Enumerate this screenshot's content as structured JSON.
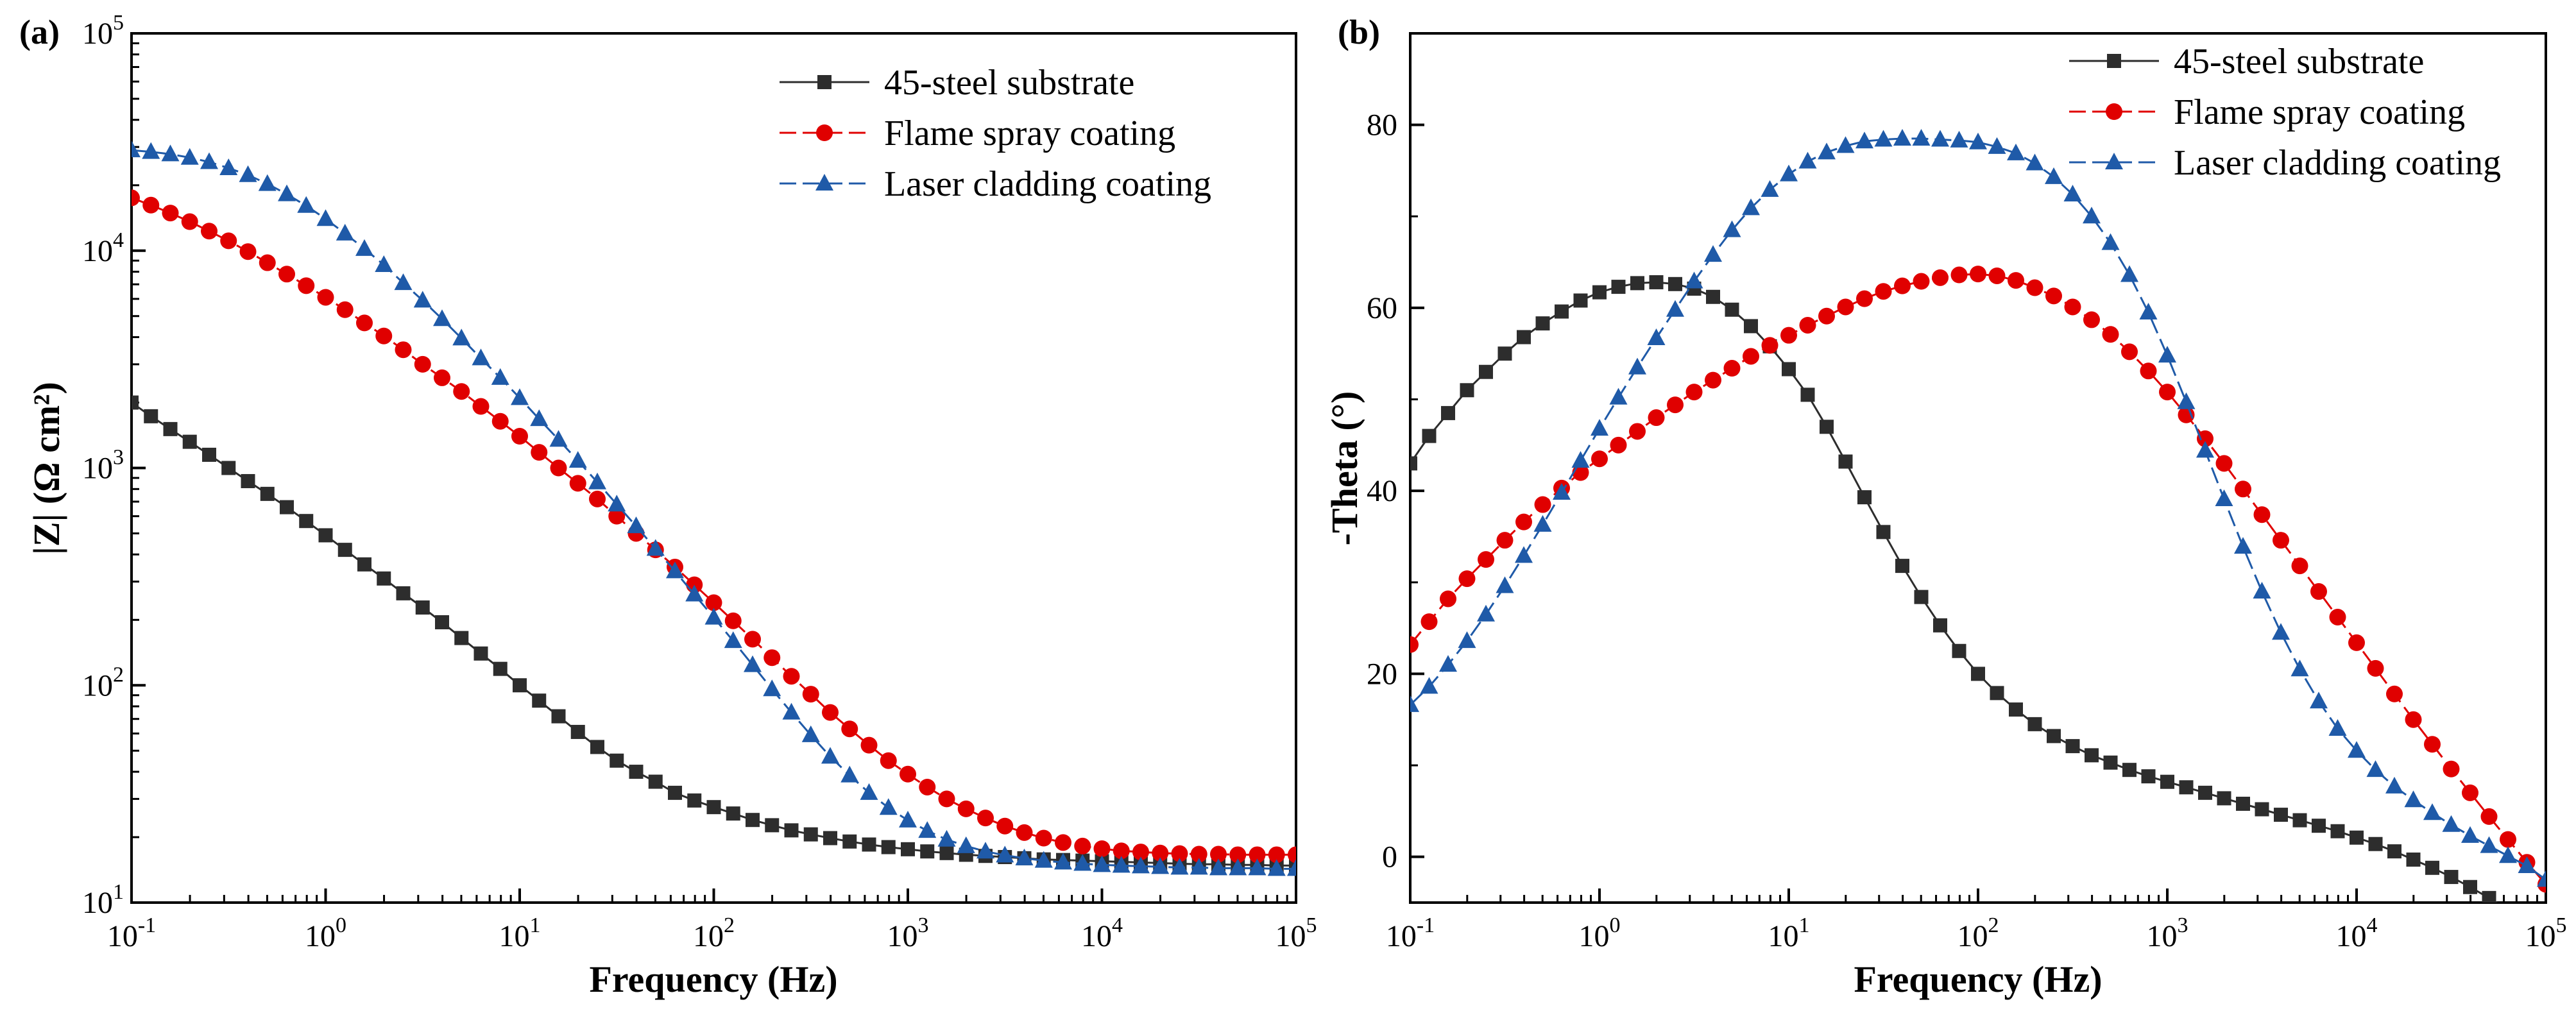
{
  "chart_data": [
    {
      "panel": "(a)",
      "type": "line",
      "x_scale": "log",
      "y_scale": "log",
      "xlabel": "Frequency (Hz)",
      "ylabel": "|Z| (Ω cm²)",
      "xlim": [
        0.1,
        100000
      ],
      "ylim": [
        10,
        100000
      ],
      "x_ticks": [
        {
          "base": "10",
          "exp": "-1"
        },
        {
          "base": "10",
          "exp": "0"
        },
        {
          "base": "10",
          "exp": "1"
        },
        {
          "base": "10",
          "exp": "2"
        },
        {
          "base": "10",
          "exp": "3"
        },
        {
          "base": "10",
          "exp": "4"
        },
        {
          "base": "10",
          "exp": "5"
        }
      ],
      "y_ticks": [
        {
          "base": "10",
          "exp": "1"
        },
        {
          "base": "10",
          "exp": "2"
        },
        {
          "base": "10",
          "exp": "3"
        },
        {
          "base": "10",
          "exp": "4"
        },
        {
          "base": "10",
          "exp": "5"
        }
      ],
      "legend_position": "top-right",
      "x": [
        0.1,
        0.1259,
        0.1585,
        0.1995,
        0.2512,
        0.3162,
        0.3981,
        0.5012,
        0.631,
        0.7943,
        1.0,
        1.2589,
        1.5849,
        1.9953,
        2.5119,
        3.1623,
        3.9811,
        5.0119,
        6.3096,
        7.9433,
        10.0,
        12.5893,
        15.8489,
        19.9526,
        25.1189,
        31.6228,
        39.8107,
        50.1187,
        63.0957,
        79.4328,
        100.0,
        125.89,
        158.49,
        199.53,
        251.19,
        316.23,
        398.11,
        501.19,
        630.96,
        794.33,
        1000.0,
        1258.93,
        1584.89,
        1995.26,
        2511.89,
        3162.28,
        3981.07,
        5011.87,
        6309.57,
        7943.28,
        10000.0,
        12589.3,
        15848.9,
        19952.6,
        25118.9,
        31622.8,
        39810.7,
        50118.7,
        63095.7,
        79432.8,
        100000.0
      ],
      "series": [
        {
          "name": "45-steel substrate",
          "color": "#2d2d2d",
          "marker": "square",
          "linestyle": "solid",
          "values": [
            2000,
            1730,
            1510,
            1320,
            1150,
            1000,
            870,
            760,
            660,
            570,
            490,
            420,
            360,
            310,
            265,
            228,
            195,
            165,
            140,
            119,
            100,
            85,
            72,
            61,
            52,
            45,
            40,
            36,
            32,
            29.5,
            27.5,
            25.7,
            24,
            22.7,
            21.5,
            20.6,
            19.8,
            19.1,
            18.5,
            18,
            17.6,
            17.2,
            16.9,
            16.6,
            16.4,
            16.2,
            16,
            15.8,
            15.7,
            15.6,
            15.5,
            15.4,
            15.3,
            15.2,
            15.1,
            15,
            15,
            14.9,
            14.9,
            14.8,
            14.8
          ]
        },
        {
          "name": "Flame spray coating",
          "color": "#e00000",
          "marker": "circle",
          "linestyle": "dashed",
          "values": [
            17500,
            16200,
            14900,
            13600,
            12300,
            11100,
            9900,
            8800,
            7800,
            6900,
            6100,
            5350,
            4650,
            4050,
            3500,
            3000,
            2600,
            2250,
            1920,
            1640,
            1400,
            1180,
            1000,
            850,
            720,
            600,
            500,
            420,
            350,
            290,
            240,
            198,
            163,
            134,
            110,
            91,
            75,
            63,
            53,
            45,
            39,
            34,
            30,
            27,
            24.5,
            22.5,
            21,
            19.8,
            18.9,
            18.2,
            17.7,
            17.3,
            17.1,
            16.9,
            16.8,
            16.7,
            16.7,
            16.6,
            16.6,
            16.6,
            16.6
          ]
        },
        {
          "name": "Laser cladding coating",
          "color": "#1f5aa8",
          "marker": "triangle",
          "linestyle": "dashed",
          "values": [
            29000,
            28500,
            27800,
            26800,
            25600,
            24000,
            22300,
            20300,
            18200,
            16100,
            14000,
            12000,
            10200,
            8600,
            7100,
            5900,
            4850,
            3950,
            3200,
            2600,
            2100,
            1680,
            1350,
            1080,
            860,
            680,
            540,
            425,
            335,
            262,
            205,
            160,
            124,
            96,
            75,
            59,
            47,
            38.5,
            32,
            27.3,
            23.9,
            21.4,
            19.5,
            18.2,
            17.2,
            16.5,
            16,
            15.6,
            15.3,
            15.1,
            14.9,
            14.8,
            14.7,
            14.6,
            14.5,
            14.5,
            14.4,
            14.4,
            14.4,
            14.3,
            14.3
          ]
        }
      ]
    },
    {
      "panel": "(b)",
      "type": "line",
      "x_scale": "log",
      "y_scale": "linear",
      "xlabel": "Frequency (Hz)",
      "ylabel": "-Theta (°)",
      "xlim": [
        0.1,
        100000
      ],
      "ylim": [
        -5,
        90
      ],
      "x_ticks": [
        {
          "base": "10",
          "exp": "-1"
        },
        {
          "base": "10",
          "exp": "0"
        },
        {
          "base": "10",
          "exp": "1"
        },
        {
          "base": "10",
          "exp": "2"
        },
        {
          "base": "10",
          "exp": "3"
        },
        {
          "base": "10",
          "exp": "4"
        },
        {
          "base": "10",
          "exp": "5"
        }
      ],
      "y_ticks": [
        0,
        20,
        40,
        60,
        80
      ],
      "legend_position": "top-right",
      "x": [
        0.1,
        0.1259,
        0.1585,
        0.1995,
        0.2512,
        0.3162,
        0.3981,
        0.5012,
        0.631,
        0.7943,
        1.0,
        1.2589,
        1.5849,
        1.9953,
        2.5119,
        3.1623,
        3.9811,
        5.0119,
        6.3096,
        7.9433,
        10.0,
        12.5893,
        15.8489,
        19.9526,
        25.1189,
        31.6228,
        39.8107,
        50.1187,
        63.0957,
        79.4328,
        100.0,
        125.89,
        158.49,
        199.53,
        251.19,
        316.23,
        398.11,
        501.19,
        630.96,
        794.33,
        1000.0,
        1258.93,
        1584.89,
        1995.26,
        2511.89,
        3162.28,
        3981.07,
        5011.87,
        6309.57,
        7943.28,
        10000.0,
        12589.3,
        15848.9,
        19952.6,
        25118.9,
        31622.8,
        39810.7,
        50118.7,
        63095.7,
        79432.8,
        100000.0
      ],
      "series": [
        {
          "name": "45-steel substrate",
          "color": "#2d2d2d",
          "marker": "square",
          "linestyle": "solid",
          "values": [
            43,
            46,
            48.5,
            51,
            53,
            55,
            56.8,
            58.3,
            59.6,
            60.8,
            61.7,
            62.3,
            62.7,
            62.8,
            62.6,
            62.1,
            61.2,
            59.8,
            58,
            55.8,
            53.3,
            50.5,
            47,
            43.2,
            39.3,
            35.5,
            31.8,
            28.4,
            25.3,
            22.5,
            20,
            17.9,
            16.1,
            14.5,
            13.2,
            12.1,
            11.1,
            10.3,
            9.5,
            8.8,
            8.2,
            7.6,
            7,
            6.4,
            5.8,
            5.2,
            4.6,
            4,
            3.4,
            2.8,
            2.1,
            1.4,
            0.6,
            -0.3,
            -1.2,
            -2.2,
            -3.3,
            -4.5,
            -5.8,
            -7.1,
            -8.5
          ]
        },
        {
          "name": "Flame spray coating",
          "color": "#e00000",
          "marker": "circle",
          "linestyle": "dashed",
          "values": [
            23.2,
            25.7,
            28.2,
            30.4,
            32.5,
            34.6,
            36.6,
            38.5,
            40.3,
            42,
            43.5,
            45,
            46.5,
            48,
            49.4,
            50.8,
            52.1,
            53.4,
            54.7,
            55.9,
            57,
            58.1,
            59.1,
            60.1,
            61,
            61.8,
            62.4,
            62.9,
            63.3,
            63.6,
            63.7,
            63.5,
            63,
            62.2,
            61.3,
            60.1,
            58.7,
            57.1,
            55.2,
            53.1,
            50.8,
            48.3,
            45.7,
            43,
            40.2,
            37.4,
            34.6,
            31.8,
            29,
            26.2,
            23.4,
            20.6,
            17.8,
            15,
            12.3,
            9.6,
            7,
            4.4,
            1.9,
            -0.6,
            -3
          ]
        },
        {
          "name": "Laser cladding coating",
          "color": "#1f5aa8",
          "marker": "triangle",
          "linestyle": "dashed",
          "values": [
            16.6,
            18.6,
            21,
            23.6,
            26.5,
            29.6,
            32.9,
            36.3,
            39.8,
            43.3,
            46.8,
            50.2,
            53.5,
            56.7,
            59.8,
            62.9,
            65.8,
            68.5,
            70.9,
            72.9,
            74.6,
            76,
            77,
            77.7,
            78.2,
            78.4,
            78.5,
            78.5,
            78.4,
            78.3,
            78.1,
            77.6,
            76.9,
            75.8,
            74.3,
            72.4,
            70,
            67.1,
            63.6,
            59.5,
            54.8,
            49.7,
            44.4,
            39.1,
            33.9,
            29,
            24.5,
            20.5,
            17,
            14,
            11.6,
            9.5,
            7.7,
            6.2,
            4.8,
            3.5,
            2.3,
            1.2,
            0.1,
            -1,
            -2.5
          ]
        }
      ]
    }
  ]
}
